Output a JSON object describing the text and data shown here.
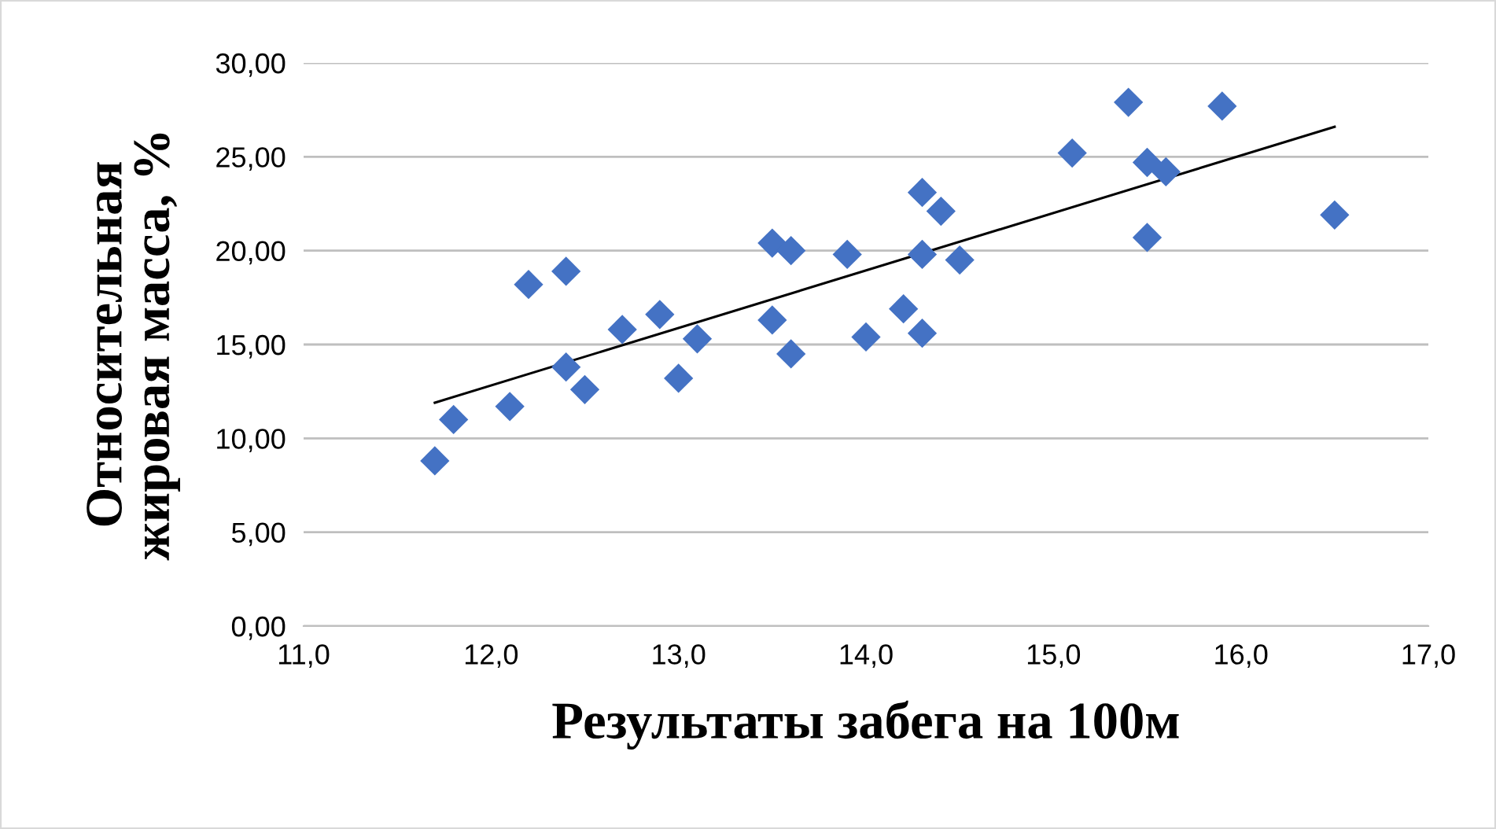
{
  "chart_data": {
    "type": "scatter",
    "xlabel": "Результаты забега на 100м",
    "ylabel": "Относительная\nжировая масса, %",
    "x": [
      11.7,
      11.8,
      12.1,
      12.2,
      12.4,
      12.4,
      12.5,
      12.7,
      12.9,
      13.0,
      13.1,
      13.5,
      13.6,
      13.5,
      13.6,
      13.9,
      14.0,
      14.2,
      14.3,
      14.3,
      14.3,
      14.4,
      14.5,
      15.1,
      15.4,
      15.5,
      15.6,
      15.5,
      15.9,
      16.5
    ],
    "series": [
      {
        "color": "#4472c4",
        "marker": "diamond",
        "values": [
          8.8,
          11.0,
          11.7,
          18.2,
          18.9,
          13.8,
          12.6,
          15.8,
          16.6,
          13.2,
          15.3,
          20.4,
          20.0,
          16.3,
          14.5,
          19.8,
          15.4,
          16.9,
          23.1,
          19.8,
          15.6,
          22.1,
          19.5,
          25.2,
          27.9,
          24.7,
          24.2,
          20.7,
          27.7,
          21.9
        ]
      },
      {
        "type": "line",
        "color": "#000000",
        "x": [
          11.7,
          16.5
        ],
        "values": [
          11.9,
          26.6
        ]
      }
    ],
    "xlim": [
      11.0,
      17.0
    ],
    "xticks": [
      {
        "value": 11,
        "label": "11,0"
      },
      {
        "value": 12,
        "label": "12,0"
      },
      {
        "value": 13,
        "label": "13,0"
      },
      {
        "value": 14,
        "label": "14,0"
      },
      {
        "value": 15,
        "label": "15,0"
      },
      {
        "value": 16,
        "label": "16,0"
      },
      {
        "value": 17,
        "label": "17,0"
      }
    ],
    "ylim": [
      0,
      30
    ],
    "yticks": [
      {
        "value": 0,
        "label": "0,00"
      },
      {
        "value": 5,
        "label": "5,00"
      },
      {
        "value": 10,
        "label": "10,00"
      },
      {
        "value": 15,
        "label": "15,00"
      },
      {
        "value": 20,
        "label": "20,00"
      },
      {
        "value": 25,
        "label": "25,00"
      },
      {
        "value": 30,
        "label": "30,00"
      }
    ],
    "grid": "y"
  }
}
